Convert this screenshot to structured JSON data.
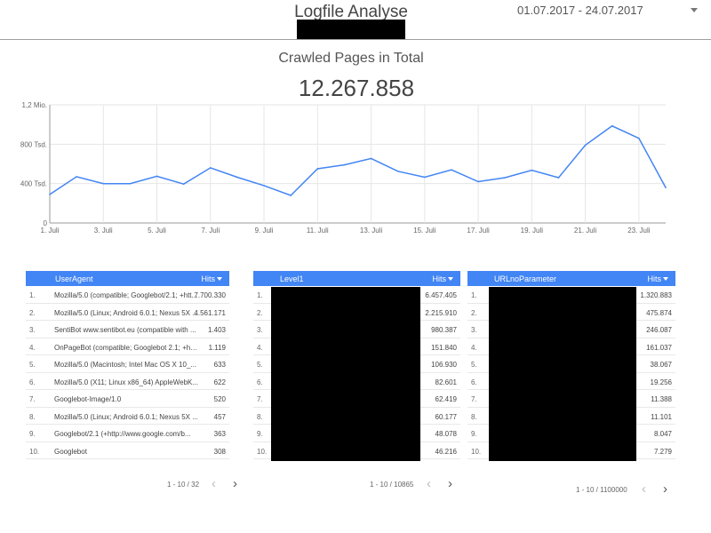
{
  "header": {
    "title": "Logfile Analyse",
    "date_range": "01.07.2017 - 24.07.2017"
  },
  "kpi": {
    "label": "Crawled Pages in Total",
    "value": "12.267.858"
  },
  "chart_data": {
    "type": "line",
    "x": [
      "1. Juli",
      "2. Juli",
      "3. Juli",
      "4. Juli",
      "5. Juli",
      "6. Juli",
      "7. Juli",
      "8. Juli",
      "9. Juli",
      "10. Juli",
      "11. Juli",
      "12. Juli",
      "13. Juli",
      "14. Juli",
      "15. Juli",
      "16. Juli",
      "17. Juli",
      "18. Juli",
      "19. Juli",
      "20. Juli",
      "21. Juli",
      "22. Juli",
      "23. Juli",
      "24. Juli"
    ],
    "x_tick_labels": [
      "1. Juli",
      "3. Juli",
      "5. Juli",
      "7. Juli",
      "9. Juli",
      "11. Juli",
      "13. Juli",
      "15. Juli",
      "17. Juli",
      "19. Juli",
      "21. Juli",
      "23. Juli"
    ],
    "values": [
      290000,
      470000,
      400000,
      400000,
      475000,
      395000,
      560000,
      465000,
      380000,
      280000,
      550000,
      590000,
      655000,
      525000,
      465000,
      540000,
      420000,
      460000,
      535000,
      460000,
      790000,
      985000,
      860000,
      360000
    ],
    "y_ticks": [
      0,
      400000,
      800000,
      1200000
    ],
    "y_tick_labels": [
      "0",
      "400 Tsd.",
      "800 Tsd.",
      "1,2 Mio."
    ],
    "ylim": [
      0,
      1200000
    ],
    "grid": true,
    "color": "#4285f4"
  },
  "tables": {
    "useragent": {
      "col1": "UserAgent",
      "col2": "Hits",
      "rows": [
        {
          "idx": "1.",
          "name": "Mozilla/5.0 (compatible; Googlebot/2.1; +htt...",
          "value": "7.700.330"
        },
        {
          "idx": "2.",
          "name": "Mozilla/5.0 (Linux; Android 6.0.1; Nexus 5X ...",
          "value": "4.561.171"
        },
        {
          "idx": "3.",
          "name": "SentiBot www.sentibot.eu (compatible with ...",
          "value": "1.403"
        },
        {
          "idx": "4.",
          "name": "OnPageBot (compatible; Googlebot 2.1; +htt...",
          "value": "1.119"
        },
        {
          "idx": "5.",
          "name": "Mozilla/5.0 (Macintosh; Intel Mac OS X 10_...",
          "value": "633"
        },
        {
          "idx": "6.",
          "name": "Mozilla/5.0 (X11; Linux x86_64) AppleWebK...",
          "value": "622"
        },
        {
          "idx": "7.",
          "name": "Googlebot-Image/1.0",
          "value": "520"
        },
        {
          "idx": "8.",
          "name": "Mozilla/5.0 (Linux; Android 6.0.1; Nexus 5X ...",
          "value": "457"
        },
        {
          "idx": "9.",
          "name": "Googlebot/2.1 (+http://www.google.com/b...",
          "value": "363"
        },
        {
          "idx": "10.",
          "name": "Googlebot",
          "value": "308"
        }
      ],
      "pager": "1 - 10 / 32"
    },
    "level1": {
      "col1": "Level1",
      "col2": "Hits",
      "rows": [
        {
          "idx": "1.",
          "value": "6.457.405"
        },
        {
          "idx": "2.",
          "value": "2.215.910"
        },
        {
          "idx": "3.",
          "value": "980.387"
        },
        {
          "idx": "4.",
          "value": "151.840"
        },
        {
          "idx": "5.",
          "value": "106.930"
        },
        {
          "idx": "6.",
          "value": "82.601"
        },
        {
          "idx": "7.",
          "value": "62.419"
        },
        {
          "idx": "8.",
          "value": "60.177"
        },
        {
          "idx": "9.",
          "value": "48.078"
        },
        {
          "idx": "10.",
          "value": "46.216"
        }
      ],
      "pager": "1 - 10 / 10865"
    },
    "urlnoparameter": {
      "col1": "URLnoParameter",
      "col2": "Hits",
      "rows": [
        {
          "idx": "1.",
          "value": "1.320.883"
        },
        {
          "idx": "2.",
          "value": "475.874"
        },
        {
          "idx": "3.",
          "value": "246.087"
        },
        {
          "idx": "4.",
          "value": "161.037"
        },
        {
          "idx": "5.",
          "value": "38.067"
        },
        {
          "idx": "6.",
          "value": "19.256"
        },
        {
          "idx": "7.",
          "value": "11.388"
        },
        {
          "idx": "8.",
          "value": "11.101"
        },
        {
          "idx": "9.",
          "value": "8.047"
        },
        {
          "idx": "10.",
          "value": "7.279"
        }
      ],
      "pager": "1 - 10 / 1100000"
    }
  },
  "icons": {
    "prev": "‹",
    "next": "›"
  }
}
